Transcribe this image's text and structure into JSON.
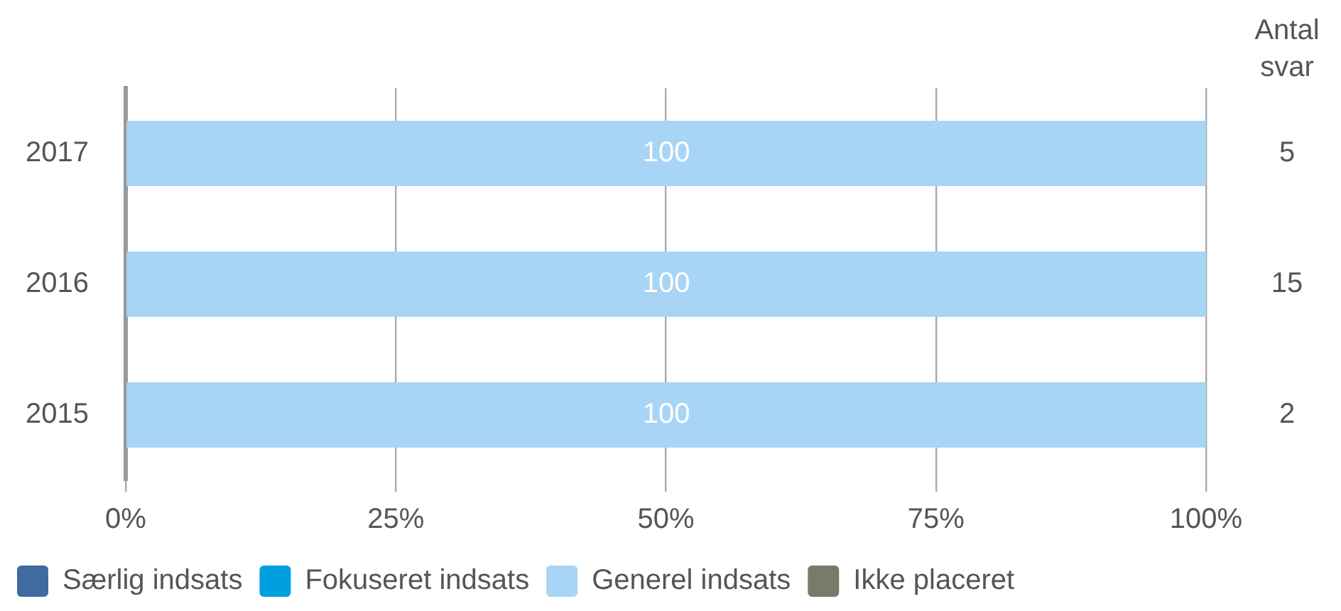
{
  "chart_data": {
    "type": "bar",
    "orientation": "horizontal",
    "stacked": true,
    "categories": [
      "2017",
      "2016",
      "2015"
    ],
    "series": [
      {
        "name": "Særlig indsats",
        "color": "#3f6b9f",
        "values": [
          0,
          0,
          0
        ]
      },
      {
        "name": "Fokuseret indsats",
        "color": "#009fe0",
        "values": [
          0,
          0,
          0
        ]
      },
      {
        "name": "Generel indsats",
        "color": "#a8d4f5",
        "values": [
          100,
          100,
          100
        ],
        "value_labels": [
          "100",
          "100",
          "100"
        ]
      },
      {
        "name": "Ikke placeret",
        "color": "#7a7a68",
        "values": [
          0,
          0,
          0
        ]
      }
    ],
    "xlim": [
      0,
      100
    ],
    "xticks": [
      {
        "value": 0,
        "label": "0%"
      },
      {
        "value": 25,
        "label": "25%"
      },
      {
        "value": 50,
        "label": "50%"
      },
      {
        "value": 75,
        "label": "75%"
      },
      {
        "value": 100,
        "label": "100%"
      }
    ],
    "grid": "x",
    "legend": "bottom",
    "y2label": "Antal svar",
    "annotations": [
      "5",
      "15",
      "2"
    ]
  }
}
